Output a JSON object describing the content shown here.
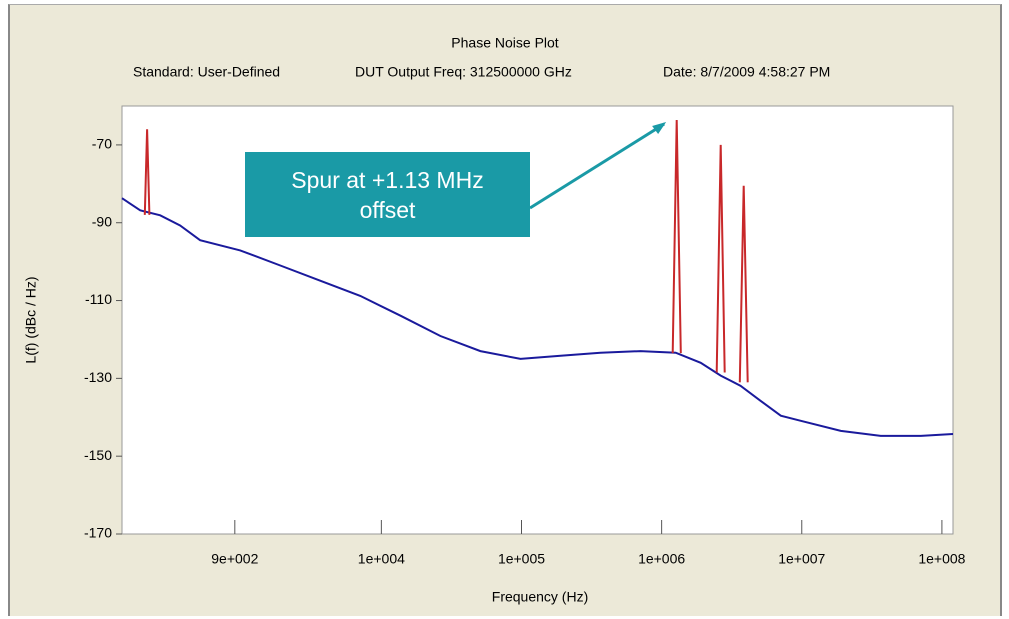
{
  "chart_data": {
    "type": "line",
    "title": "Phase Noise Plot",
    "subtitle": [
      "Standard: User-Defined",
      "DUT Output Freq: 312500000 GHz",
      "Date: 8/7/2009 4:58:27 PM"
    ],
    "xlabel": "Frequency (Hz)",
    "ylabel": "L(f) (dBc / Hz)",
    "xscale": "log",
    "xlim": [
      141,
      120000000
    ],
    "ylim": [
      -170,
      -60
    ],
    "xticks": [
      {
        "value": 900,
        "label": "9e+002"
      },
      {
        "value": 10000,
        "label": "1e+004"
      },
      {
        "value": 100000,
        "label": "1e+005"
      },
      {
        "value": 1000000,
        "label": "1e+006"
      },
      {
        "value": 10000000,
        "label": "1e+007"
      },
      {
        "value": 100000000,
        "label": "1e+008"
      }
    ],
    "yticks": [
      -70,
      -90,
      -110,
      -130,
      -150,
      -170
    ],
    "series": [
      {
        "color": "#1a1a9c",
        "x": [
          141,
          190,
          264,
          366,
          509,
          984,
          1900,
          3660,
          7080,
          13700,
          26400,
          50900,
          98400,
          190000,
          366000,
          708000,
          1260000,
          1900000,
          2640000,
          3660000,
          5090000,
          7080000,
          9840000,
          19000000,
          36600000,
          70800000,
          120000000
        ],
        "values": [
          -83.7,
          -86.8,
          -88.1,
          -90.7,
          -94.5,
          -97.1,
          -101.0,
          -104.9,
          -108.8,
          -113.9,
          -119.1,
          -123.0,
          -125.0,
          -124.2,
          -123.4,
          -123.0,
          -123.4,
          -126.0,
          -129.3,
          -131.9,
          -135.8,
          -139.6,
          -140.9,
          -143.5,
          -144.8,
          -144.8,
          -144.3
        ]
      },
      {
        "color": "#c8282a",
        "x": [
          205,
          213,
          221,
          null,
          1200000,
          1280000,
          1370000,
          null,
          2470000,
          2640000,
          2820000,
          null,
          3610000,
          3850000,
          4110000
        ],
        "values": [
          -88,
          -66,
          -88,
          null,
          -123.5,
          -63.6,
          -123.5,
          null,
          -128.5,
          -70,
          -128.5,
          null,
          -131,
          -80.5,
          -131
        ]
      }
    ],
    "annotation": {
      "text": "Spur at +1.13 MHz offset",
      "color": "#1a9aa6",
      "x": 1150000,
      "y": -63.6
    }
  }
}
